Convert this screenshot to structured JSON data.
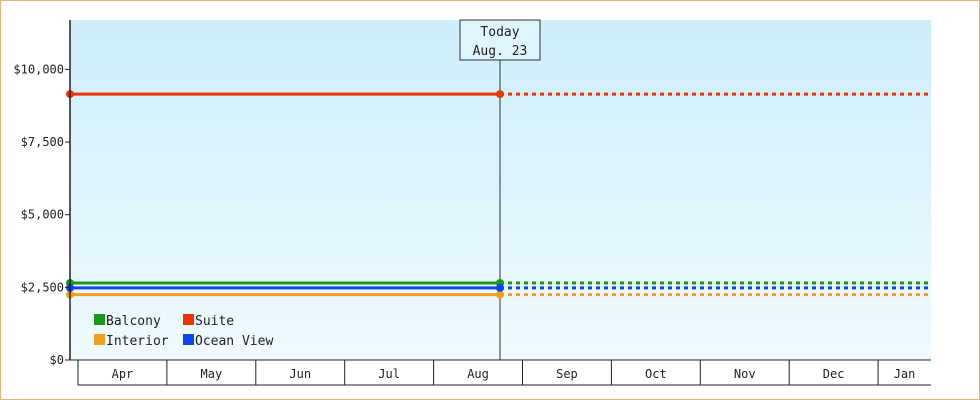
{
  "chart_data": {
    "type": "line",
    "title": "",
    "xlabel": "",
    "ylabel": "",
    "categories": [
      "Apr",
      "May",
      "Jun",
      "Jul",
      "Aug",
      "Sep",
      "Oct",
      "Nov",
      "Dec",
      "Jan"
    ],
    "y_ticks": [
      "$0",
      "$2,500",
      "$5,000",
      "$7,500",
      "$10,000"
    ],
    "y_tick_values": [
      0,
      2500,
      5000,
      7500,
      10000
    ],
    "ylim": [
      0,
      11700
    ],
    "grid": false,
    "background_gradient": [
      "#cdeefa",
      "#effafe"
    ],
    "today_marker": {
      "line1": "Today",
      "line2": "Aug. 23",
      "x_value": 4.65
    },
    "series": [
      {
        "name": "Balcony",
        "color": "#1a9a1a",
        "value": 2650,
        "history_end": 4.65,
        "projection_end": 9.5
      },
      {
        "name": "Suite",
        "color": "#ee3300",
        "value": 9150,
        "history_end": 4.65,
        "projection_end": 9.5
      },
      {
        "name": "Interior",
        "color": "#f0a020",
        "value": 2250,
        "history_end": 4.65,
        "projection_end": 9.5
      },
      {
        "name": "Ocean View",
        "color": "#1144ee",
        "value": 2480,
        "history_end": 4.65,
        "projection_end": 9.5
      }
    ],
    "legend": {
      "placement": "bottom-left",
      "columns": 2
    }
  }
}
